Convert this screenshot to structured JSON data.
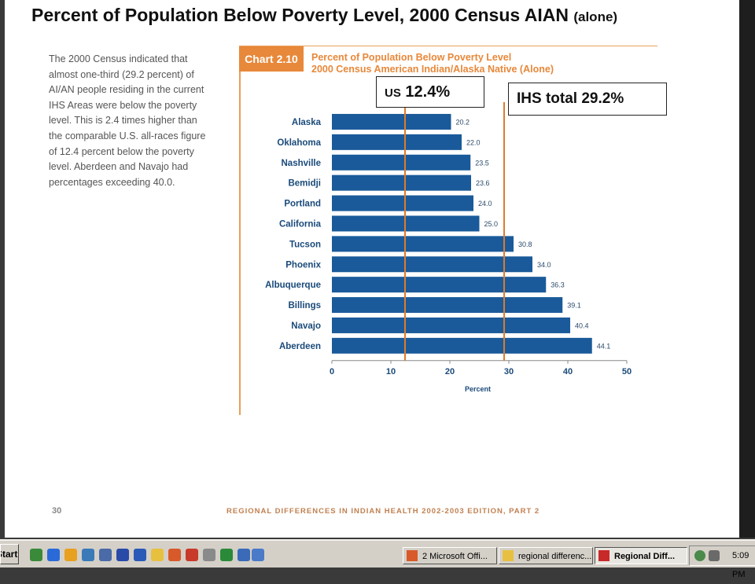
{
  "slide": {
    "title_main": "Percent of Population Below Poverty Level, 2000 Census AIAN",
    "title_small": "(alone)",
    "side_text": "The 2000 Census indicated that almost one-third (29.2 percent) of AI/AN people residing in the current IHS Areas were below the poverty level. This is 2.4 times higher than the comparable U.S. all-races figure of 12.4 percent below the poverty level. Aberdeen and Navajo had percentages exceeding 40.0.",
    "chart_label": "Chart 2.10",
    "chart_title_line1": "Percent of Population Below Poverty Level",
    "chart_title_line2": "2000 Census American Indian/Alaska Native (Alone)",
    "callout_us_prefix": "US",
    "callout_us_value": "12.4%",
    "callout_ihs": "IHS total 29.2%",
    "footer_page": "30",
    "footer_text": "REGIONAL DIFFERENCES IN INDIAN HEALTH 2002-2003 EDITION, PART 2"
  },
  "chart_data": {
    "type": "bar",
    "orientation": "horizontal",
    "categories": [
      "Alaska",
      "Oklahoma",
      "Nashville",
      "Bemidji",
      "Portland",
      "California",
      "Tucson",
      "Phoenix",
      "Albuquerque",
      "Billings",
      "Navajo",
      "Aberdeen"
    ],
    "values": [
      20.2,
      22.0,
      23.5,
      23.6,
      24.0,
      25.0,
      30.8,
      34.0,
      36.3,
      39.1,
      40.4,
      44.1
    ],
    "value_labels": [
      "20.2",
      "22.0",
      "23.5",
      "23.6",
      "24.0",
      "25.0",
      "30.8",
      "34.0",
      "36.3",
      "39.1",
      "40.4",
      "44.1"
    ],
    "xlabel": "Percent",
    "xlim": [
      0,
      50
    ],
    "xticks": [
      0,
      10,
      20,
      30,
      40,
      50
    ],
    "reference_lines": [
      {
        "value": 12.4
      },
      {
        "value": 29.2
      }
    ],
    "bar_color": "#1a5a9a",
    "reference_color": "#e07a2a",
    "grid": false
  },
  "taskbar": {
    "start_label": "Start",
    "buttons": [
      {
        "label": "2 Microsoft Offi..."
      },
      {
        "label": "regional differenc..."
      },
      {
        "label": "Regional Diff..."
      }
    ],
    "clock": "5:09 PM"
  }
}
